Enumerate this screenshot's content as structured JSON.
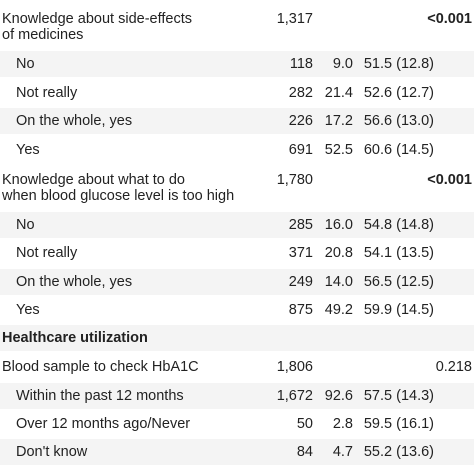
{
  "rows": [
    {
      "label": "Knowledge about side-effects",
      "n": "1,317",
      "pct": "",
      "mean": "",
      "p": "<0.001"
    },
    {
      "label": "of medicines",
      "n": "",
      "pct": "",
      "mean": "",
      "p": ""
    },
    {
      "label": "No",
      "n": "118",
      "pct": "9.0",
      "mean": "51.5 (12.8)",
      "p": ""
    },
    {
      "label": "Not really",
      "n": "282",
      "pct": "21.4",
      "mean": "52.6 (12.7)",
      "p": ""
    },
    {
      "label": "On the whole, yes",
      "n": "226",
      "pct": "17.2",
      "mean": "56.6 (13.0)",
      "p": ""
    },
    {
      "label": "Yes",
      "n": "691",
      "pct": "52.5",
      "mean": "60.6 (14.5)",
      "p": ""
    },
    {
      "label": "Knowledge about what to do",
      "n": "1,780",
      "pct": "",
      "mean": "",
      "p": "<0.001"
    },
    {
      "label": "when blood glucose level is too high",
      "n": "",
      "pct": "",
      "mean": "",
      "p": ""
    },
    {
      "label": "No",
      "n": "285",
      "pct": "16.0",
      "mean": "54.8 (14.8)",
      "p": ""
    },
    {
      "label": "Not really",
      "n": "371",
      "pct": "20.8",
      "mean": "54.1 (13.5)",
      "p": ""
    },
    {
      "label": "On the whole, yes",
      "n": "249",
      "pct": "14.0",
      "mean": "56.5 (12.5)",
      "p": ""
    },
    {
      "label": "Yes",
      "n": "875",
      "pct": "49.2",
      "mean": "59.9 (14.5)",
      "p": ""
    },
    {
      "label": "Healthcare utilization",
      "n": "",
      "pct": "",
      "mean": "",
      "p": ""
    },
    {
      "label": "Blood sample to check HbA1C",
      "n": "1,806",
      "pct": "",
      "mean": "",
      "p": "0.218"
    },
    {
      "label": "Within the past 12 months",
      "n": "1,672",
      "pct": "92.6",
      "mean": "57.5 (14.3)",
      "p": ""
    },
    {
      "label": "Over 12 months ago/Never",
      "n": "50",
      "pct": "2.8",
      "mean": "59.5 (16.1)",
      "p": ""
    },
    {
      "label": "Don't know",
      "n": "84",
      "pct": "4.7",
      "mean": "55.2 (13.6)",
      "p": ""
    }
  ]
}
